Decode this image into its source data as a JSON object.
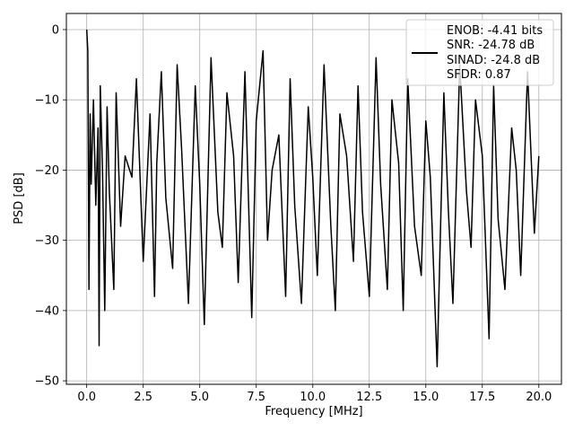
{
  "chart_data": {
    "type": "line",
    "xlabel": "Frequency [MHz]",
    "ylabel": "PSD [dB]",
    "xlim": [
      -0.9,
      21.0
    ],
    "ylim": [
      -50.5,
      2.3
    ],
    "grid": true,
    "x_ticks": [
      {
        "value": 0.0,
        "label": "0.0"
      },
      {
        "value": 2.5,
        "label": "2.5"
      },
      {
        "value": 5.0,
        "label": "5.0"
      },
      {
        "value": 7.5,
        "label": "7.5"
      },
      {
        "value": 10.0,
        "label": "10.0"
      },
      {
        "value": 12.5,
        "label": "12.5"
      },
      {
        "value": 15.0,
        "label": "15.0"
      },
      {
        "value": 17.5,
        "label": "17.5"
      },
      {
        "value": 20.0,
        "label": "20.0"
      }
    ],
    "y_ticks": [
      {
        "value": 0,
        "label": "0"
      },
      {
        "value": -10,
        "label": "−10"
      },
      {
        "value": -20,
        "label": "−20"
      },
      {
        "value": -30,
        "label": "−30"
      },
      {
        "value": -40,
        "label": "−40"
      },
      {
        "value": -50,
        "label": "−50"
      }
    ],
    "legend": {
      "placement": "upper-right",
      "lines": [
        "ENOB: -4.41 bits",
        "SNR: -24.78 dB",
        "SINAD: -24.8 dB",
        "SFDR: 0.87"
      ]
    },
    "series": [
      {
        "color": "#000000",
        "x": [
          0.0,
          0.05,
          0.1,
          0.15,
          0.2,
          0.3,
          0.4,
          0.5,
          0.55,
          0.6,
          0.7,
          0.8,
          0.9,
          1.0,
          1.2,
          1.3,
          1.5,
          1.7,
          2.0,
          2.2,
          2.5,
          2.8,
          3.0,
          3.1,
          3.3,
          3.5,
          3.8,
          4.0,
          4.2,
          4.5,
          4.8,
          5.0,
          5.2,
          5.5,
          5.8,
          6.0,
          6.2,
          6.5,
          6.7,
          7.0,
          7.3,
          7.5,
          7.8,
          8.0,
          8.2,
          8.5,
          8.8,
          9.0,
          9.2,
          9.5,
          9.8,
          10.0,
          10.2,
          10.5,
          10.8,
          11.0,
          11.2,
          11.5,
          11.8,
          12.0,
          12.2,
          12.5,
          12.8,
          13.0,
          13.3,
          13.5,
          13.8,
          14.0,
          14.2,
          14.5,
          14.8,
          15.0,
          15.2,
          15.5,
          15.8,
          16.0,
          16.2,
          16.5,
          16.8,
          17.0,
          17.2,
          17.5,
          17.8,
          18.0,
          18.2,
          18.5,
          18.8,
          19.0,
          19.2,
          19.5,
          19.8,
          20.0
        ],
        "y": [
          0,
          -3,
          -37,
          -12,
          -22,
          -10,
          -25,
          -14,
          -45,
          -8,
          -20,
          -40,
          -11,
          -23,
          -37,
          -9,
          -28,
          -18,
          -21,
          -7,
          -33,
          -12,
          -38,
          -19,
          -6,
          -24,
          -34,
          -5,
          -17,
          -39,
          -8,
          -22,
          -42,
          -4,
          -26,
          -31,
          -9,
          -18,
          -36,
          -6,
          -41,
          -13,
          -3,
          -30,
          -20,
          -15,
          -38,
          -7,
          -25,
          -39,
          -11,
          -21,
          -35,
          -5,
          -28,
          -40,
          -12,
          -18,
          -33,
          -8,
          -26,
          -38,
          -4,
          -22,
          -37,
          -10,
          -19,
          -40,
          -7,
          -28,
          -35,
          -13,
          -21,
          -48,
          -9,
          -26,
          -39,
          -5,
          -23,
          -31,
          -10,
          -18,
          -44,
          -8,
          -27,
          -37,
          -14,
          -20,
          -35,
          -6,
          -29,
          -18
        ]
      }
    ]
  }
}
